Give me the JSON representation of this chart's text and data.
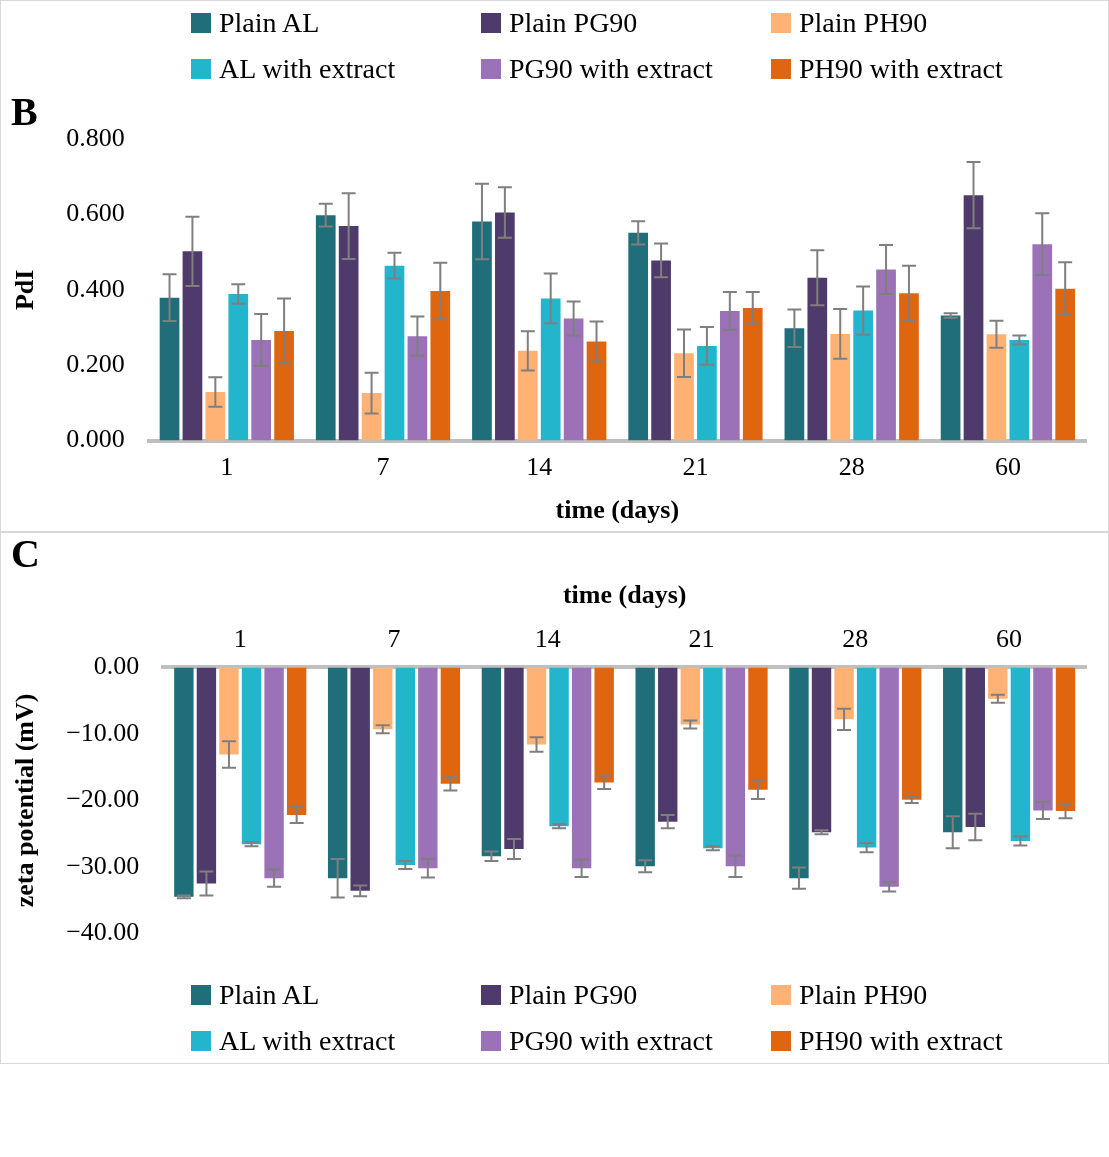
{
  "chart_data": [
    {
      "type": "bar",
      "title": "B",
      "xlabel": "time (days)",
      "ylabel": "PdI",
      "categories": [
        "1",
        "7",
        "14",
        "21",
        "28",
        "60"
      ],
      "ylim": [
        0,
        0.8
      ],
      "yticks": [
        {
          "value": 0,
          "label": "0.000"
        },
        {
          "value": 0.2,
          "label": "0.200"
        },
        {
          "value": 0.4,
          "label": "0.400"
        },
        {
          "value": 0.6,
          "label": "0.600"
        },
        {
          "value": 0.8,
          "label": "0.800"
        }
      ],
      "grid": false,
      "legend": "top",
      "series": [
        {
          "name": "Plain AL",
          "color": "#1f6e7a",
          "values": [
            0.379,
            0.598,
            0.581,
            0.551,
            0.298,
            0.332
          ],
          "errors": [
            0.062,
            0.03,
            0.1,
            0.031,
            0.05,
            0.006
          ]
        },
        {
          "name": "Plain PG90",
          "color": "#4f3b6b",
          "values": [
            0.502,
            0.569,
            0.605,
            0.478,
            0.432,
            0.651
          ],
          "errors": [
            0.092,
            0.087,
            0.067,
            0.045,
            0.073,
            0.088
          ]
        },
        {
          "name": "Plain PH90",
          "color": "#ffb273",
          "values": [
            0.129,
            0.126,
            0.238,
            0.232,
            0.283,
            0.282
          ],
          "errors": [
            0.039,
            0.054,
            0.052,
            0.063,
            0.066,
            0.036
          ]
        },
        {
          "name": "AL with extract",
          "color": "#22b5cc",
          "values": [
            0.389,
            0.464,
            0.377,
            0.251,
            0.345,
            0.267
          ],
          "errors": [
            0.026,
            0.034,
            0.066,
            0.05,
            0.064,
            0.012
          ]
        },
        {
          "name": "PG90 with extract",
          "color": "#9b72b8",
          "values": [
            0.267,
            0.277,
            0.324,
            0.344,
            0.454,
            0.521
          ],
          "errors": [
            0.069,
            0.052,
            0.045,
            0.05,
            0.065,
            0.082
          ]
        },
        {
          "name": "PH90 with extract",
          "color": "#e0650f",
          "values": [
            0.291,
            0.397,
            0.263,
            0.352,
            0.391,
            0.403
          ],
          "errors": [
            0.086,
            0.075,
            0.053,
            0.042,
            0.073,
            0.07
          ]
        }
      ]
    },
    {
      "type": "bar",
      "title": "C",
      "xlabel": "time (days)",
      "ylabel": "zeta potential (mV)",
      "categories": [
        "1",
        "7",
        "14",
        "21",
        "28",
        "60"
      ],
      "ylim": [
        -40,
        0
      ],
      "yticks": [
        {
          "value": 0,
          "label": "0.00"
        },
        {
          "value": -10,
          "label": "−10.00"
        },
        {
          "value": -20,
          "label": "−20.00"
        },
        {
          "value": -30,
          "label": "−30.00"
        },
        {
          "value": -40,
          "label": "−40.00"
        }
      ],
      "grid": false,
      "legend": "bottom",
      "series": [
        {
          "name": "Plain AL",
          "color": "#1f6e7a",
          "values": [
            -34.5,
            -31.7,
            -28.4,
            -29.9,
            -31.7,
            -24.8
          ],
          "errors": [
            0.2,
            2.9,
            0.7,
            0.9,
            1.6,
            2.4
          ]
        },
        {
          "name": "Plain PG90",
          "color": "#4f3b6b",
          "values": [
            -32.5,
            -33.6,
            -27.3,
            -23.2,
            -24.8,
            -24.0
          ],
          "errors": [
            1.8,
            0.8,
            1.5,
            1.0,
            0.3,
            2.0
          ]
        },
        {
          "name": "Plain PH90",
          "color": "#ffb273",
          "values": [
            -13.1,
            -9.3,
            -11.6,
            -8.6,
            -7.8,
            -4.7
          ],
          "errors": [
            2.0,
            0.6,
            1.1,
            0.6,
            1.6,
            0.6
          ]
        },
        {
          "name": "AL with extract",
          "color": "#22b5cc",
          "values": [
            -26.6,
            -29.7,
            -23.9,
            -27.2,
            -27.1,
            -26.1
          ],
          "errors": [
            0.3,
            0.6,
            0.3,
            0.3,
            0.7,
            0.7
          ]
        },
        {
          "name": "PG90 with extract",
          "color": "#9b72b8",
          "values": [
            -31.7,
            -30.2,
            -30.2,
            -29.9,
            -33.0,
            -21.5
          ],
          "errors": [
            1.3,
            1.4,
            1.3,
            1.6,
            0.7,
            1.3
          ]
        },
        {
          "name": "PH90 with extract",
          "color": "#e0650f",
          "values": [
            -22.2,
            -17.5,
            -17.3,
            -18.4,
            -19.9,
            -21.6
          ],
          "errors": [
            1.2,
            1.0,
            1.0,
            1.4,
            0.5,
            1.1
          ]
        }
      ]
    }
  ]
}
